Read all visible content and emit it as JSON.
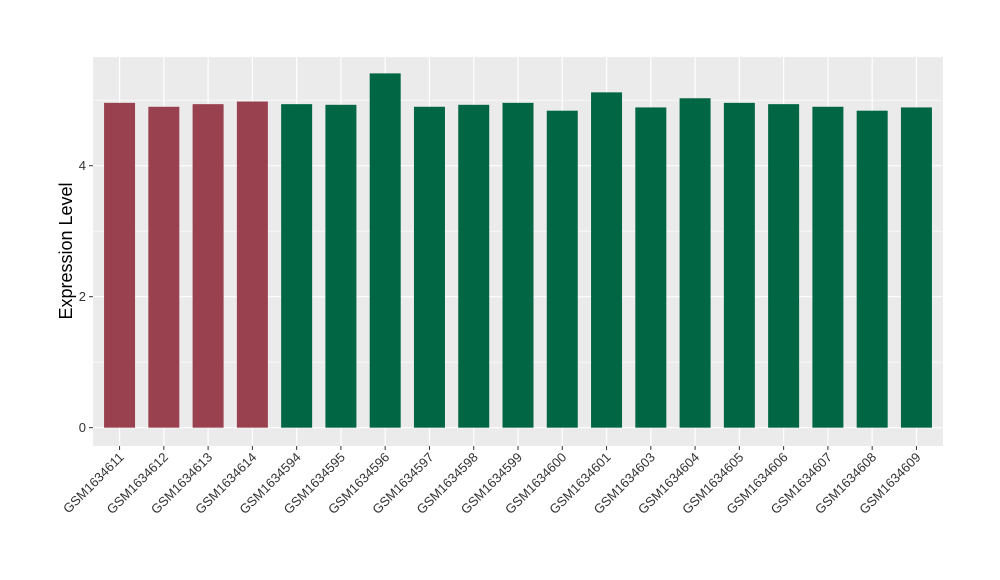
{
  "chart_data": {
    "type": "bar",
    "title": "",
    "xlabel": "",
    "ylabel": "Expression Level",
    "ylim": [
      -0.28,
      5.66
    ],
    "yticks": [
      0,
      2,
      4
    ],
    "grid": true,
    "legend": "none",
    "panel_background": "#ebebeb",
    "categories": [
      "GSM1634611",
      "GSM1634612",
      "GSM1634613",
      "GSM1634614",
      "GSM1634594",
      "GSM1634595",
      "GSM1634596",
      "GSM1634597",
      "GSM1634598",
      "GSM1634599",
      "GSM1634600",
      "GSM1634601",
      "GSM1634603",
      "GSM1634604",
      "GSM1634605",
      "GSM1634606",
      "GSM1634607",
      "GSM1634608",
      "GSM1634609"
    ],
    "values": [
      4.96,
      4.9,
      4.94,
      4.98,
      4.94,
      4.93,
      5.41,
      4.9,
      4.93,
      4.96,
      4.84,
      5.12,
      4.89,
      5.03,
      4.96,
      4.94,
      4.9,
      4.84,
      4.89
    ],
    "bar_colors": [
      "#99414f",
      "#99414f",
      "#99414f",
      "#99414f",
      "#006644",
      "#006644",
      "#006644",
      "#006644",
      "#006644",
      "#006644",
      "#006644",
      "#006644",
      "#006644",
      "#006644",
      "#006644",
      "#006644",
      "#006644",
      "#006644",
      "#006644"
    ]
  }
}
